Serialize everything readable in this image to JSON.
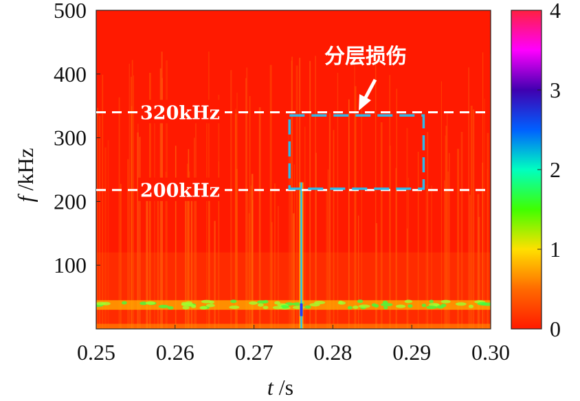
{
  "chart_data": {
    "type": "heatmap",
    "title": "",
    "xlabel": "t /s",
    "ylabel": "f /kHz",
    "xlim": [
      0.25,
      0.3
    ],
    "ylim": [
      0,
      500
    ],
    "x_ticks": [
      "0.25",
      "0.26",
      "0.27",
      "0.28",
      "0.29",
      "0.30"
    ],
    "x_tick_values": [
      0.25,
      0.26,
      0.27,
      0.28,
      0.29,
      0.3
    ],
    "y_ticks": [
      "100",
      "200",
      "300",
      "400",
      "500"
    ],
    "y_tick_values": [
      100,
      200,
      300,
      400,
      500
    ],
    "colorbar": {
      "range": [
        0,
        4
      ],
      "ticks": [
        "0",
        "1",
        "2",
        "3",
        "4"
      ],
      "tick_values": [
        0,
        1,
        2,
        3,
        4
      ],
      "colors": [
        "#ff1a00",
        "#ff6a00",
        "#ffe000",
        "#40ff00",
        "#00ffc0",
        "#0060ff",
        "#4000b0",
        "#ff00ff",
        "#ff2040"
      ]
    },
    "background_value": 0,
    "hlines": [
      {
        "label": "320kHz",
        "y": 340
      },
      {
        "label": "200kHz",
        "y": 218
      }
    ],
    "annotation_box": {
      "label": "分层损伤",
      "x": [
        0.2745,
        0.2915
      ],
      "y": [
        220,
        335
      ]
    },
    "features": [
      {
        "name": "low-frequency band",
        "y": [
          30,
          45
        ],
        "value": 1.3
      },
      {
        "name": "impulse",
        "x": 0.276,
        "y": [
          0,
          230
        ],
        "value": 2.3
      }
    ]
  }
}
